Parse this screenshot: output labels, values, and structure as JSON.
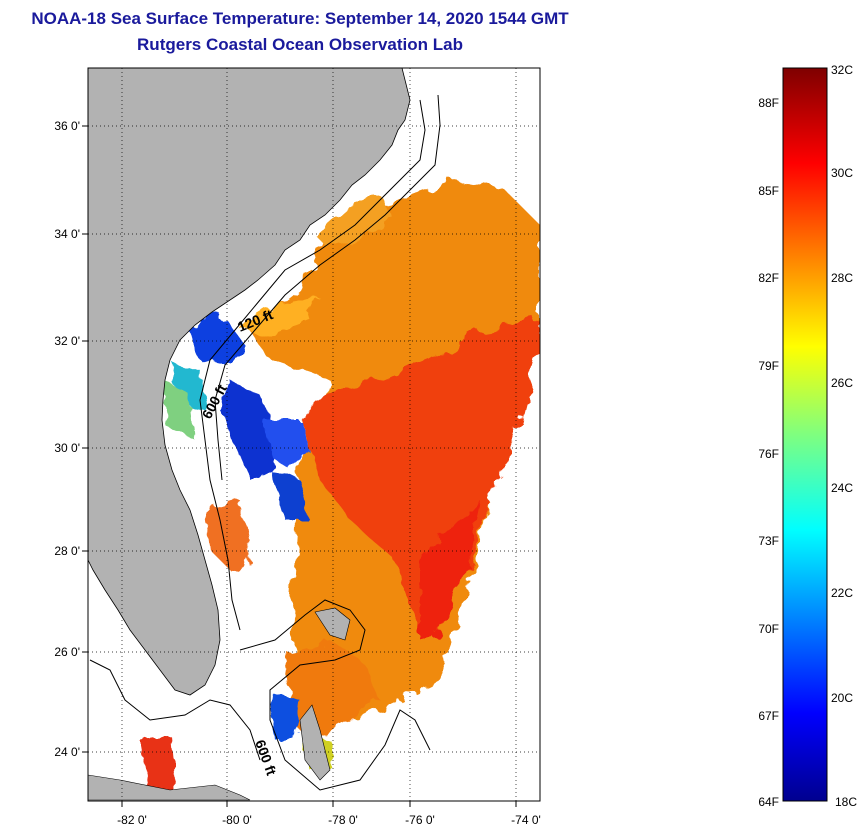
{
  "header": {
    "title": "NOAA-18 Sea Surface Temperature:  September 14, 2020 1544 GMT",
    "subtitle": "Rutgers Coastal Ocean Observation Lab"
  },
  "map": {
    "lat_ticks": [
      "36 0'",
      "34 0'",
      "32 0'",
      "30 0'",
      "28 0'",
      "26 0'",
      "24 0'"
    ],
    "lon_ticks": [
      "-82 0'",
      "-80 0'",
      "-78 0'",
      "-76 0'",
      "-74 0'"
    ],
    "isobath_labels": [
      "120 ft",
      "600 ft",
      "600 ft"
    ],
    "colors": {
      "land": "#b2b2b2",
      "frame": "#000000"
    }
  },
  "colorbar": {
    "range_c": [
      18,
      32
    ],
    "celsius_labels": [
      "32C",
      "30C",
      "28C",
      "26C",
      "24C",
      "22C",
      "20C",
      "18C"
    ],
    "fahrenheit_labels": [
      "88F",
      "85F",
      "82F",
      "79F",
      "76F",
      "73F",
      "70F",
      "67F",
      "64F"
    ]
  }
}
